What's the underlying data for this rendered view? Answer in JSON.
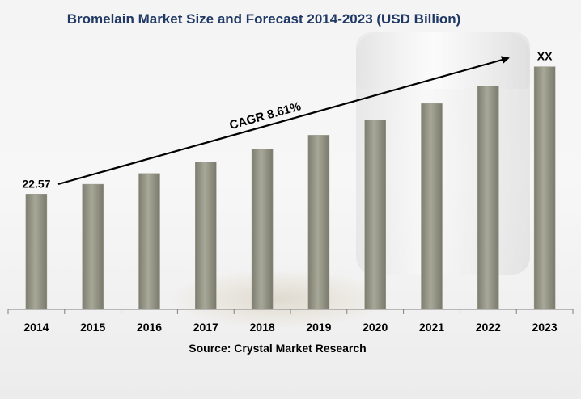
{
  "chart_data": {
    "type": "bar",
    "title": "Bromelain Market  Size and Forecast 2014-2023 (USD Billion)",
    "categories": [
      "2014",
      "2015",
      "2016",
      "2017",
      "2018",
      "2019",
      "2020",
      "2021",
      "2022",
      "2023"
    ],
    "values": [
      22.57,
      24.5,
      26.6,
      28.9,
      31.4,
      34.1,
      37.1,
      40.3,
      43.7,
      47.5
    ],
    "data_labels": [
      "22.57",
      "",
      "",
      "",
      "",
      "",
      "",
      "",
      "",
      "XX"
    ],
    "annotation": "CAGR 8.61%",
    "source": "Source: Crystal Market Research",
    "ylim": [
      0,
      49.5
    ],
    "bar_color": "#9b9b8c",
    "title_color": "#1f3864",
    "grid": false,
    "legend": "none"
  }
}
